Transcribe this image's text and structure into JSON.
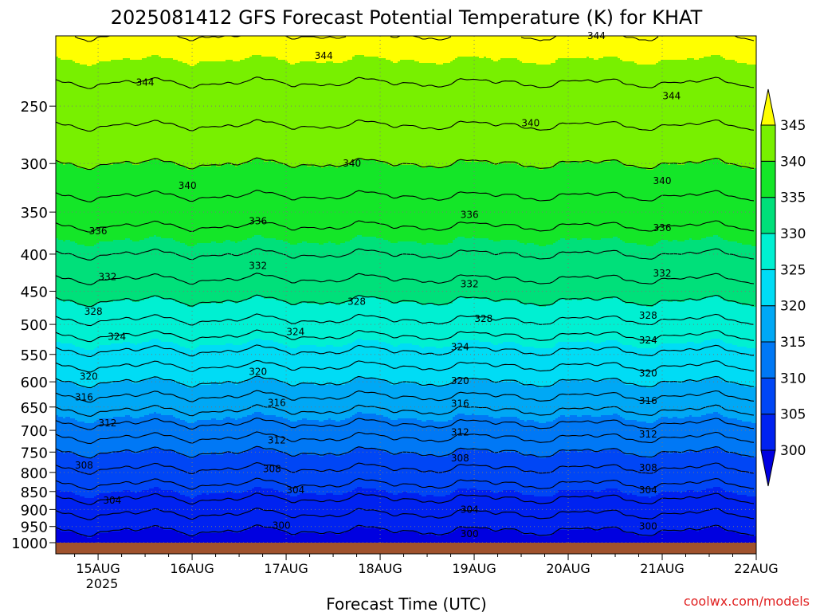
{
  "chart_data": {
    "type": "heatmap",
    "title": "2025081412 GFS Forecast Potential Temperature (K) for KHAT",
    "xlabel": "Forecast Time (UTC)",
    "ylabel": "",
    "x_ticks": [
      "15AUG",
      "16AUG",
      "17AUG",
      "18AUG",
      "19AUG",
      "20AUG",
      "21AUG",
      "22AUG"
    ],
    "x_year_label": "2025",
    "x_range": [
      14.55,
      22.0
    ],
    "y_ticks": [
      250,
      300,
      350,
      400,
      450,
      500,
      550,
      600,
      650,
      700,
      750,
      800,
      850,
      900,
      950,
      1000
    ],
    "y_range": [
      1000,
      200
    ],
    "y_scale": "log",
    "grid": true,
    "colorbar": {
      "levels": [
        300,
        305,
        310,
        315,
        320,
        325,
        330,
        335,
        340,
        345
      ],
      "colors": [
        "#0000e0",
        "#0022f0",
        "#0046f5",
        "#0078f5",
        "#00a8f5",
        "#00dcf5",
        "#00f0d2",
        "#00e07a",
        "#14e628",
        "#78f000",
        "#b4f500",
        "#ffff00"
      ],
      "extend": "both"
    },
    "contour_interval": 2,
    "contour_labels": [
      {
        "x": 15.5,
        "p": 232,
        "value": "344"
      },
      {
        "x": 17.4,
        "p": 213,
        "value": "344"
      },
      {
        "x": 20.3,
        "p": 200,
        "value": "344"
      },
      {
        "x": 21.1,
        "p": 242,
        "value": "344"
      },
      {
        "x": 19.6,
        "p": 264,
        "value": "340"
      },
      {
        "x": 17.7,
        "p": 300,
        "value": "340"
      },
      {
        "x": 15.95,
        "p": 322,
        "value": "340"
      },
      {
        "x": 21.0,
        "p": 317,
        "value": "340"
      },
      {
        "x": 15.0,
        "p": 372,
        "value": "336"
      },
      {
        "x": 16.7,
        "p": 360,
        "value": "336"
      },
      {
        "x": 18.95,
        "p": 353,
        "value": "336"
      },
      {
        "x": 21.0,
        "p": 368,
        "value": "336"
      },
      {
        "x": 15.1,
        "p": 430,
        "value": "332"
      },
      {
        "x": 16.7,
        "p": 415,
        "value": "332"
      },
      {
        "x": 18.95,
        "p": 440,
        "value": "332"
      },
      {
        "x": 21.0,
        "p": 425,
        "value": "332"
      },
      {
        "x": 14.95,
        "p": 480,
        "value": "328"
      },
      {
        "x": 17.75,
        "p": 465,
        "value": "328"
      },
      {
        "x": 19.1,
        "p": 491,
        "value": "328"
      },
      {
        "x": 20.85,
        "p": 486,
        "value": "328"
      },
      {
        "x": 15.2,
        "p": 520,
        "value": "324"
      },
      {
        "x": 17.1,
        "p": 512,
        "value": "324"
      },
      {
        "x": 18.85,
        "p": 537,
        "value": "324"
      },
      {
        "x": 20.85,
        "p": 526,
        "value": "324"
      },
      {
        "x": 14.9,
        "p": 590,
        "value": "320"
      },
      {
        "x": 16.7,
        "p": 581,
        "value": "320"
      },
      {
        "x": 18.85,
        "p": 598,
        "value": "320"
      },
      {
        "x": 20.85,
        "p": 584,
        "value": "320"
      },
      {
        "x": 14.85,
        "p": 630,
        "value": "316"
      },
      {
        "x": 16.9,
        "p": 641,
        "value": "316"
      },
      {
        "x": 18.85,
        "p": 643,
        "value": "316"
      },
      {
        "x": 20.85,
        "p": 637,
        "value": "316"
      },
      {
        "x": 15.1,
        "p": 684,
        "value": "312"
      },
      {
        "x": 16.9,
        "p": 722,
        "value": "312"
      },
      {
        "x": 18.85,
        "p": 704,
        "value": "312"
      },
      {
        "x": 20.85,
        "p": 709,
        "value": "312"
      },
      {
        "x": 14.85,
        "p": 782,
        "value": "308"
      },
      {
        "x": 16.85,
        "p": 791,
        "value": "308"
      },
      {
        "x": 18.85,
        "p": 765,
        "value": "308"
      },
      {
        "x": 20.85,
        "p": 788,
        "value": "308"
      },
      {
        "x": 15.15,
        "p": 874,
        "value": "304"
      },
      {
        "x": 17.1,
        "p": 846,
        "value": "304"
      },
      {
        "x": 18.95,
        "p": 900,
        "value": "304"
      },
      {
        "x": 20.85,
        "p": 846,
        "value": "304"
      },
      {
        "x": 16.95,
        "p": 947,
        "value": "300"
      },
      {
        "x": 18.95,
        "p": 972,
        "value": "300"
      },
      {
        "x": 20.85,
        "p": 950,
        "value": "300"
      }
    ],
    "credit": "coolwx.com/models"
  }
}
